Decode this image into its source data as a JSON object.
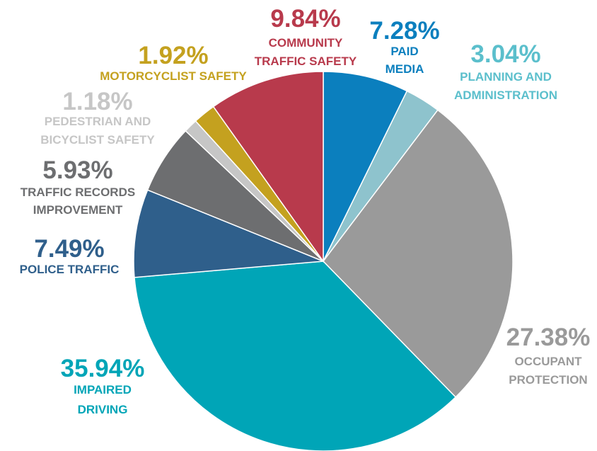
{
  "chart_data": {
    "type": "pie",
    "categories": [
      "PAID\nMEDIA",
      "PLANNING AND\nADMINISTRATION",
      "OCCUPANT\nPROTECTION",
      "IMPAIRED\nDRIVING",
      "POLICE TRAFFIC",
      "TRAFFIC RECORDS\nIMPROVEMENT",
      "PEDESTRIAN AND\nBICYCLIST SAFETY",
      "MOTORCYCLIST SAFETY",
      "COMMUNITY\nTRAFFIC SAFETY"
    ],
    "values": [
      7.28,
      3.04,
      27.38,
      35.94,
      7.49,
      5.93,
      1.18,
      1.92,
      9.84
    ],
    "value_labels": [
      "7.28%",
      "3.04%",
      "27.38%",
      "35.94%",
      "7.49%",
      "5.93%",
      "1.18%",
      "1.92%",
      "9.84%"
    ],
    "colors": [
      "#0b7fbe",
      "#8ec3cd",
      "#9a9a9a",
      "#00a5b7",
      "#2f5f8b",
      "#6d6e70",
      "#c6c6c6",
      "#c4a11f",
      "#b83a4c"
    ],
    "label_colors": [
      "#0b7fbe",
      "#5bbfcc",
      "#9a9a9a",
      "#00a5b7",
      "#2f5f8b",
      "#6d6e70",
      "#c6c6c6",
      "#c4a11f",
      "#b83a4c"
    ]
  }
}
